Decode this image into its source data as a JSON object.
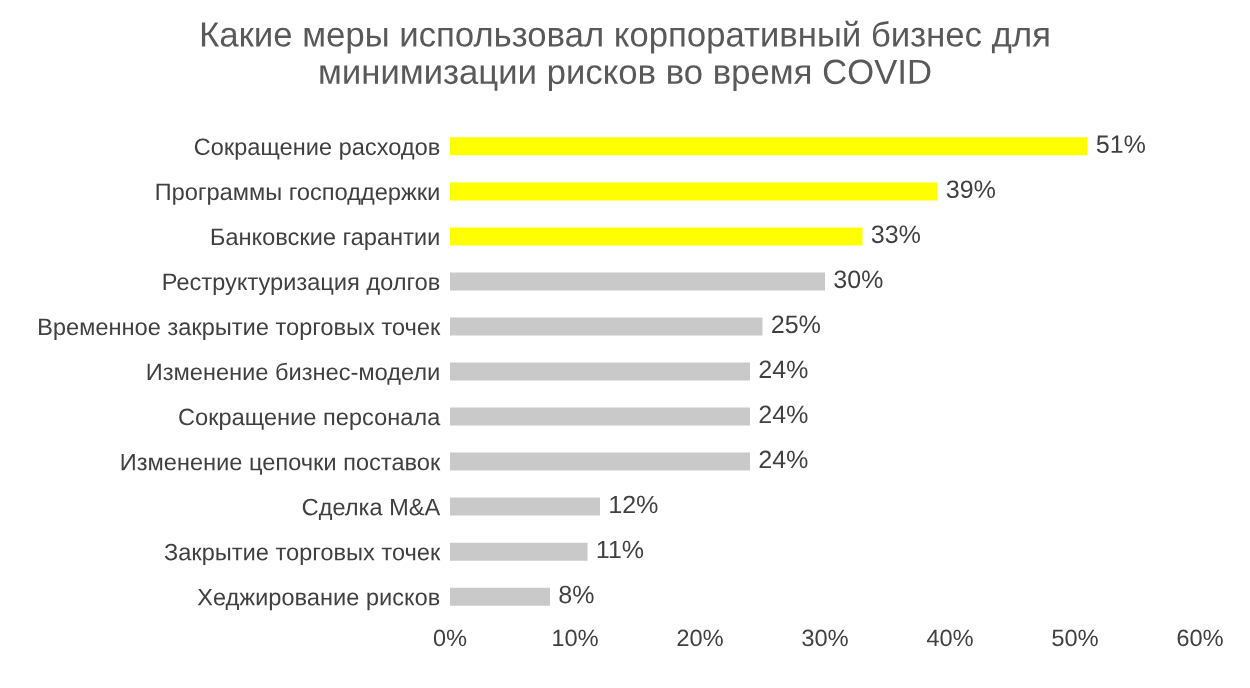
{
  "chart_data": {
    "type": "bar",
    "orientation": "horizontal",
    "title": "Какие меры использовал корпоративный бизнес для\nминимизации рисков во время COVID",
    "categories": [
      "Сокращение расходов",
      "Программы господдержки",
      "Банковские гарантии",
      "Реструктуризация долгов",
      "Временное закрытие торговых точек",
      "Изменение бизнес-модели",
      "Сокращение персонала",
      "Изменение цепочки поставок",
      "Сделка M&A",
      "Закрытие торговых точек",
      "Хеджирование рисков"
    ],
    "values": [
      51,
      39,
      33,
      30,
      25,
      24,
      24,
      24,
      12,
      11,
      8
    ],
    "colors": [
      "#ffff00",
      "#ffff00",
      "#ffff00",
      "#c9c9c9",
      "#c9c9c9",
      "#c9c9c9",
      "#c9c9c9",
      "#c9c9c9",
      "#c9c9c9",
      "#c9c9c9",
      "#c9c9c9"
    ],
    "value_labels": [
      "51%",
      "39%",
      "33%",
      "30%",
      "25%",
      "24%",
      "24%",
      "24%",
      "12%",
      "11%",
      "8%"
    ],
    "xlim": [
      0,
      60
    ],
    "xticks": [
      {
        "value": 0,
        "label": "0%"
      },
      {
        "value": 10,
        "label": "10%"
      },
      {
        "value": 20,
        "label": "20%"
      },
      {
        "value": 30,
        "label": "30%"
      },
      {
        "value": 40,
        "label": "40%"
      },
      {
        "value": 50,
        "label": "50%"
      },
      {
        "value": 60,
        "label": "60%"
      }
    ],
    "grid": false
  }
}
